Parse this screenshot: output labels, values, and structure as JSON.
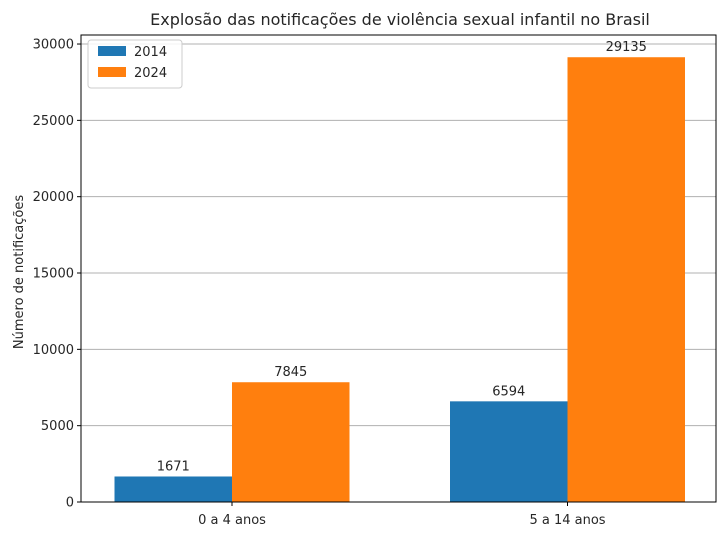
{
  "chart_data": {
    "type": "bar",
    "title": "Explosão das notificações de violência sexual infantil no Brasil",
    "xlabel": "",
    "ylabel": "Número de notificações",
    "categories": [
      "0 a 4 anos",
      "5 a 14 anos"
    ],
    "series": [
      {
        "name": "2014",
        "values": [
          1671,
          6594
        ],
        "color": "#1f77b4"
      },
      {
        "name": "2024",
        "values": [
          7845,
          29135
        ],
        "color": "#ff7f0e"
      }
    ],
    "ylim": [
      0,
      30591
    ],
    "yticks": [
      0,
      5000,
      10000,
      15000,
      20000,
      25000,
      30000
    ],
    "grid": "y",
    "legend_position": "top-left",
    "data_labels": true
  }
}
